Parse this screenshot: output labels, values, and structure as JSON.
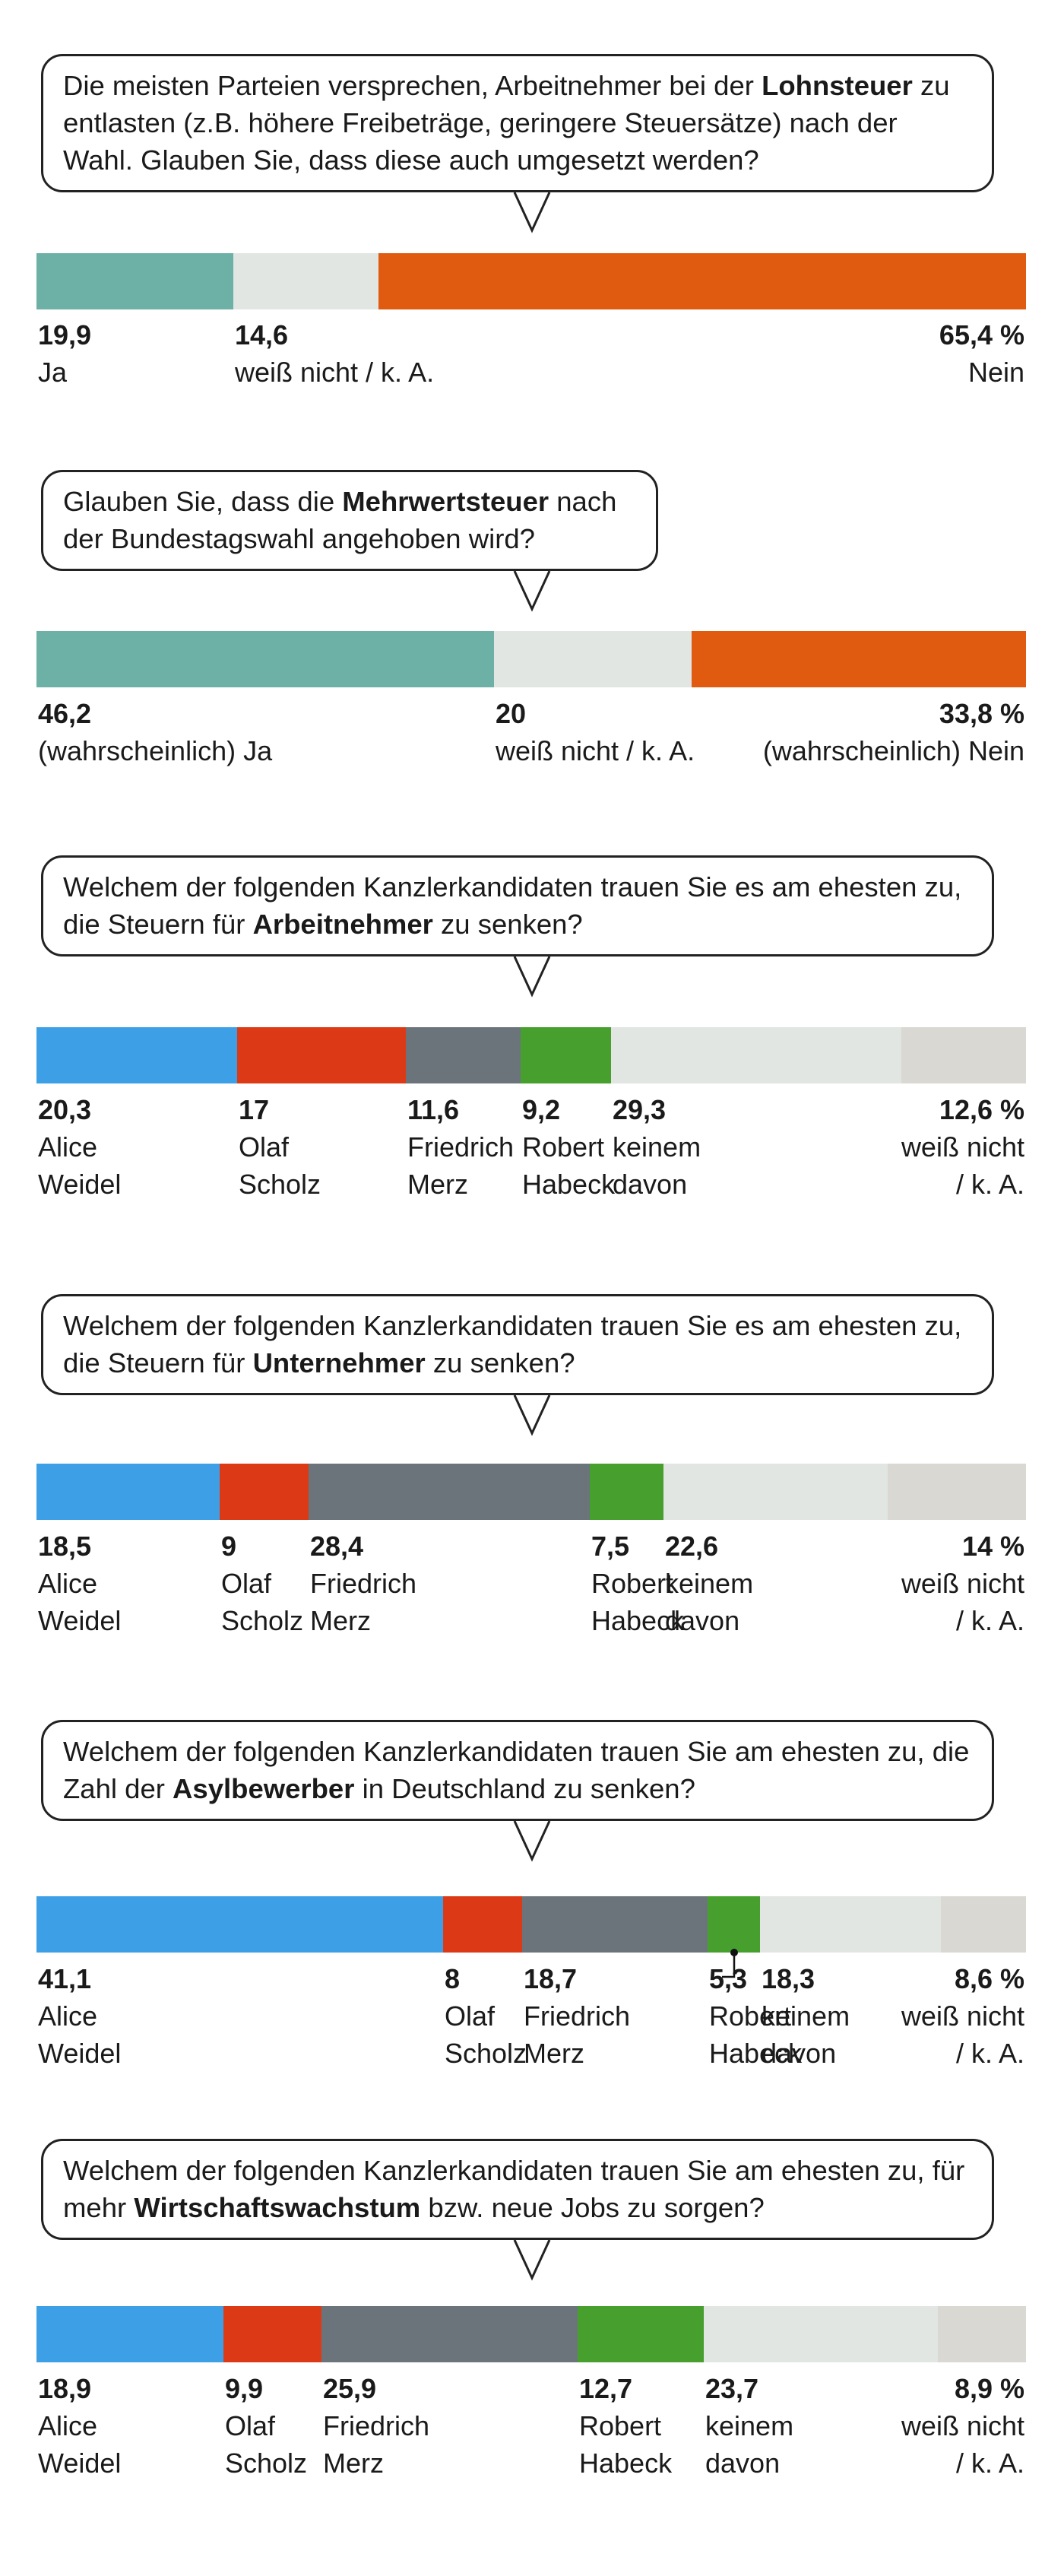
{
  "colors": {
    "ja": "#6db0a6",
    "neutral": "#e1e6e3",
    "nein": "#e05a0f",
    "weidel": "#3da0e6",
    "scholz": "#dc3a17",
    "merz": "#6b747b",
    "habeck": "#47a02e",
    "keinem": "#e1e6e3",
    "weissnicht": "#d9d8d2"
  },
  "chart_data": [
    {
      "type": "bar",
      "stacked": true,
      "orientation": "horizontal",
      "title_parts": [
        {
          "text": "Die meisten Parteien versprechen, Arbeitnehmer bei der ",
          "bold": false
        },
        {
          "text": "Lohnsteuer",
          "bold": true
        },
        {
          "text": " zu entlasten (z.B. höhere Freibeträge, geringere Steuersätze) nach der Wahl. Glauben Sie, dass diese auch umgesetzt werden?",
          "bold": false
        }
      ],
      "unit": "%",
      "total": 99.9,
      "segments": [
        {
          "key": "ja",
          "value": 19.9,
          "value_label": "19,9",
          "label": [
            "Ja"
          ]
        },
        {
          "key": "neutral",
          "value": 14.6,
          "value_label": "14,6",
          "label": [
            "weiß nicht / k. A."
          ]
        },
        {
          "key": "nein",
          "value": 65.4,
          "value_label": "65,4 %",
          "label": [
            "Nein"
          ]
        }
      ]
    },
    {
      "type": "bar",
      "stacked": true,
      "orientation": "horizontal",
      "title_parts": [
        {
          "text": "Glauben Sie, dass die ",
          "bold": false
        },
        {
          "text": "Mehrwertsteuer",
          "bold": true
        },
        {
          "text": " nach der Bundestagswahl angehoben wird?",
          "bold": false
        }
      ],
      "unit": "%",
      "total": 100,
      "segments": [
        {
          "key": "ja",
          "value": 46.2,
          "value_label": "46,2",
          "label": [
            "(wahrscheinlich) Ja"
          ]
        },
        {
          "key": "neutral",
          "value": 20,
          "value_label": "20",
          "label": [
            "weiß nicht / k. A."
          ]
        },
        {
          "key": "nein",
          "value": 33.8,
          "value_label": "33,8 %",
          "label": [
            "(wahrscheinlich) Nein"
          ]
        }
      ]
    },
    {
      "type": "bar",
      "stacked": true,
      "orientation": "horizontal",
      "title_parts": [
        {
          "text": "Welchem der folgenden Kanzlerkandidaten trauen Sie es am ehesten zu, die Steuern für ",
          "bold": false
        },
        {
          "text": "Arbeitnehmer",
          "bold": true
        },
        {
          "text": " zu senken?",
          "bold": false
        }
      ],
      "unit": "%",
      "total": 100,
      "segments": [
        {
          "key": "weidel",
          "value": 20.3,
          "value_label": "20,3",
          "label": [
            "Alice",
            "Weidel"
          ]
        },
        {
          "key": "scholz",
          "value": 17,
          "value_label": "17",
          "label": [
            "Olaf",
            "Scholz"
          ]
        },
        {
          "key": "merz",
          "value": 11.6,
          "value_label": "11,6",
          "label": [
            "Friedrich",
            "Merz"
          ]
        },
        {
          "key": "habeck",
          "value": 9.2,
          "value_label": "9,2",
          "label": [
            "Robert",
            "Habeck"
          ]
        },
        {
          "key": "keinem",
          "value": 29.3,
          "value_label": "29,3",
          "label": [
            "keinem",
            "davon"
          ]
        },
        {
          "key": "weissnicht",
          "value": 12.6,
          "value_label": "12,6 %",
          "label": [
            "weiß nicht",
            "/ k. A."
          ]
        }
      ]
    },
    {
      "type": "bar",
      "stacked": true,
      "orientation": "horizontal",
      "title_parts": [
        {
          "text": "Welchem der folgenden Kanzlerkandidaten trauen Sie es am ehesten zu, die Steuern für ",
          "bold": false
        },
        {
          "text": "Unternehmer",
          "bold": true
        },
        {
          "text": " zu senken?",
          "bold": false
        }
      ],
      "unit": "%",
      "total": 100,
      "segments": [
        {
          "key": "weidel",
          "value": 18.5,
          "value_label": "18,5",
          "label": [
            "Alice",
            "Weidel"
          ]
        },
        {
          "key": "scholz",
          "value": 9,
          "value_label": "9",
          "label": [
            "Olaf",
            "Scholz"
          ]
        },
        {
          "key": "merz",
          "value": 28.4,
          "value_label": "28,4",
          "label": [
            "Friedrich",
            "Merz"
          ]
        },
        {
          "key": "habeck",
          "value": 7.5,
          "value_label": "7,5",
          "label": [
            "Robert",
            "Habeck"
          ]
        },
        {
          "key": "keinem",
          "value": 22.6,
          "value_label": "22,6",
          "label": [
            "keinem",
            "davon"
          ]
        },
        {
          "key": "weissnicht",
          "value": 14,
          "value_label": "14 %",
          "label": [
            "weiß nicht",
            "/ k. A."
          ]
        }
      ]
    },
    {
      "type": "bar",
      "stacked": true,
      "orientation": "horizontal",
      "title_parts": [
        {
          "text": "Welchem der folgenden Kanzlerkandidaten trauen Sie am ehesten zu, die Zahl der ",
          "bold": false
        },
        {
          "text": "Asylbewerber",
          "bold": true
        },
        {
          "text": " in Deutschland zu senken?",
          "bold": false
        }
      ],
      "unit": "%",
      "total": 100,
      "segments": [
        {
          "key": "weidel",
          "value": 41.1,
          "value_label": "41,1",
          "label": [
            "Alice",
            "Weidel"
          ]
        },
        {
          "key": "scholz",
          "value": 8,
          "value_label": "8",
          "label": [
            "Olaf",
            "Scholz"
          ]
        },
        {
          "key": "merz",
          "value": 18.7,
          "value_label": "18,7",
          "label": [
            "Friedrich",
            "Merz"
          ]
        },
        {
          "key": "habeck",
          "value": 5.3,
          "value_label": "5,3",
          "label": [
            "Robert",
            "Habeck"
          ],
          "leader": true
        },
        {
          "key": "keinem",
          "value": 18.3,
          "value_label": "18,3",
          "label": [
            "keinem",
            "davon"
          ]
        },
        {
          "key": "weissnicht",
          "value": 8.6,
          "value_label": "8,6 %",
          "label": [
            "weiß nicht",
            "/ k. A."
          ]
        }
      ]
    },
    {
      "type": "bar",
      "stacked": true,
      "orientation": "horizontal",
      "title_parts": [
        {
          "text": "Welchem der folgenden Kanzlerkandidaten trauen Sie am ehesten zu, für mehr ",
          "bold": false
        },
        {
          "text": "Wirtschaftswachstum",
          "bold": true
        },
        {
          "text": " bzw. neue Jobs zu sorgen?",
          "bold": false
        }
      ],
      "unit": "%",
      "total": 100,
      "segments": [
        {
          "key": "weidel",
          "value": 18.9,
          "value_label": "18,9",
          "label": [
            "Alice",
            "Weidel"
          ]
        },
        {
          "key": "scholz",
          "value": 9.9,
          "value_label": "9,9",
          "label": [
            "Olaf",
            "Scholz"
          ]
        },
        {
          "key": "merz",
          "value": 25.9,
          "value_label": "25,9",
          "label": [
            "Friedrich",
            "Merz"
          ]
        },
        {
          "key": "habeck",
          "value": 12.7,
          "value_label": "12,7",
          "label": [
            "Robert",
            "Habeck"
          ]
        },
        {
          "key": "keinem",
          "value": 23.7,
          "value_label": "23,7",
          "label": [
            "keinem",
            "davon"
          ]
        },
        {
          "key": "weissnicht",
          "value": 8.9,
          "value_label": "8,9 %",
          "label": [
            "weiß nicht",
            "/ k. A."
          ]
        }
      ]
    }
  ]
}
